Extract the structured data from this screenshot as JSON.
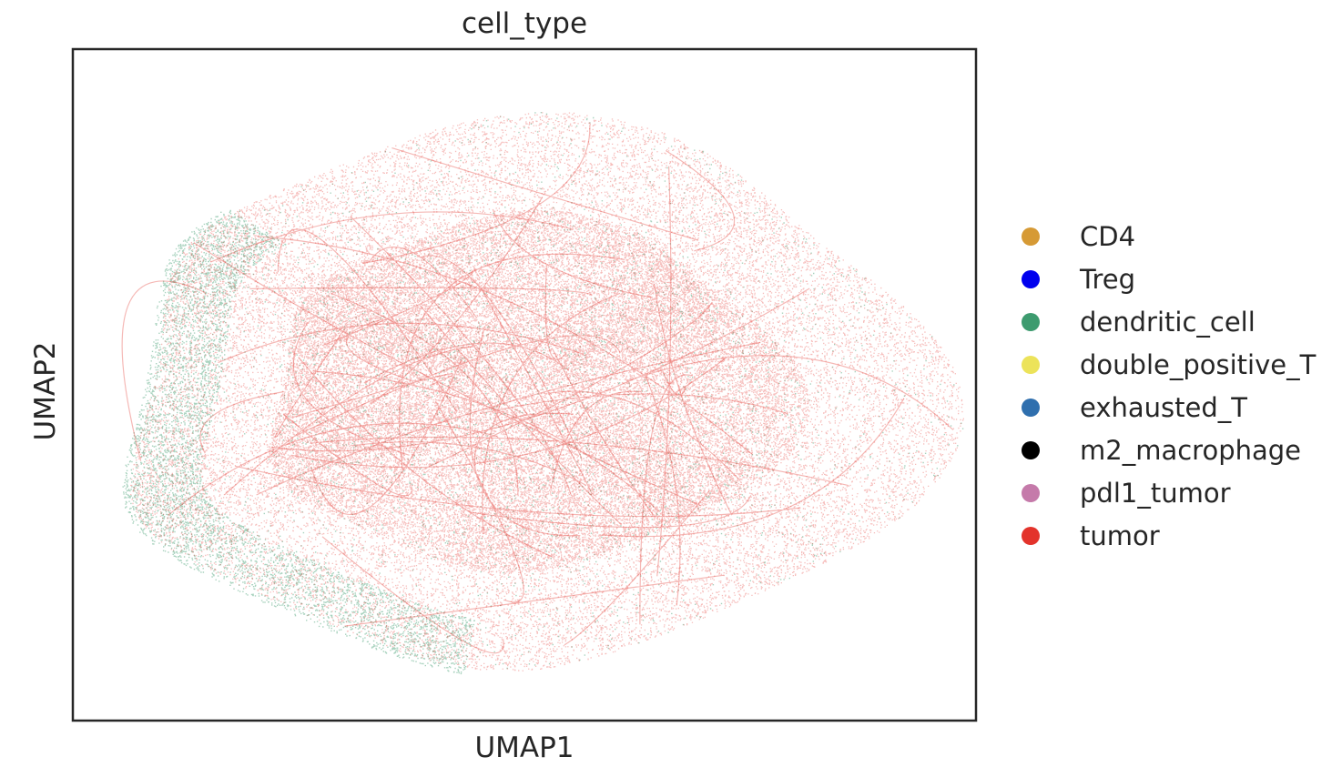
{
  "chart_data": {
    "type": "scatter",
    "title": "cell_type",
    "xlabel": "UMAP1",
    "ylabel": "UMAP2",
    "xticks": [],
    "yticks": [],
    "grid": false,
    "legend_position": "right",
    "series": [
      {
        "name": "CD4",
        "color": "#d69a35",
        "share": 0.0
      },
      {
        "name": "Treg",
        "color": "#0000ee",
        "share": 0.0
      },
      {
        "name": "dendritic_cell",
        "color": "#3d9b6f",
        "share": 0.15
      },
      {
        "name": "double_positive_T",
        "color": "#ece35a",
        "share": 0.0
      },
      {
        "name": "exhausted_T",
        "color": "#2f6fae",
        "share": 0.0
      },
      {
        "name": "m2_macrophage",
        "color": "#000000",
        "share": 0.0
      },
      {
        "name": "pdl1_tumor",
        "color": "#c57aaa",
        "share": 0.0
      },
      {
        "name": "tumor",
        "color": "#e3332b",
        "share": 0.85
      }
    ]
  }
}
